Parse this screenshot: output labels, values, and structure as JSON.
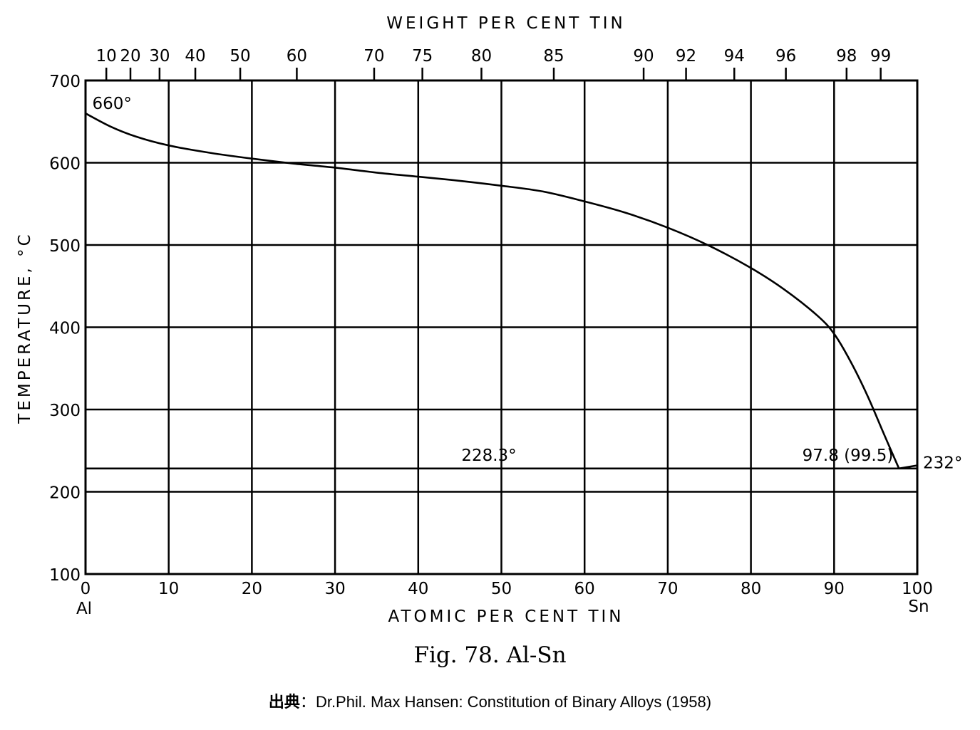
{
  "chart_data": {
    "type": "line",
    "top_axis_title": "WEIGHT PER CENT TIN",
    "bottom_axis_title": "ATOMIC PER CENT TIN",
    "ylabel": "TEMPERATURE, °C",
    "xlim": [
      0,
      100
    ],
    "ylim": [
      100,
      700
    ],
    "grid": true,
    "x_ticks": [
      0,
      10,
      20,
      30,
      40,
      50,
      60,
      70,
      80,
      90,
      100
    ],
    "x_tick_labels": [
      "0",
      "10",
      "20",
      "30",
      "40",
      "50",
      "60",
      "70",
      "80",
      "90",
      "100"
    ],
    "y_ticks": [
      100,
      200,
      300,
      400,
      500,
      600,
      700
    ],
    "y_tick_labels": [
      "100",
      "200",
      "300",
      "400",
      "500",
      "600",
      "700"
    ],
    "endpoint_labels": {
      "left": "Al",
      "right": "Sn"
    },
    "weight_ticks": [
      {
        "label": "10",
        "at_pct": 2.5
      },
      {
        "label": "20",
        "at_pct": 5.4
      },
      {
        "label": "30",
        "at_pct": 8.9
      },
      {
        "label": "40",
        "at_pct": 13.2
      },
      {
        "label": "50",
        "at_pct": 18.6
      },
      {
        "label": "60",
        "at_pct": 25.4
      },
      {
        "label": "70",
        "at_pct": 34.7
      },
      {
        "label": "75",
        "at_pct": 40.5
      },
      {
        "label": "80",
        "at_pct": 47.6
      },
      {
        "label": "85",
        "at_pct": 56.3
      },
      {
        "label": "90",
        "at_pct": 67.1
      },
      {
        "label": "92",
        "at_pct": 72.2
      },
      {
        "label": "94",
        "at_pct": 78.0
      },
      {
        "label": "96",
        "at_pct": 84.2
      },
      {
        "label": "98",
        "at_pct": 91.5
      },
      {
        "label": "99",
        "at_pct": 95.6
      }
    ],
    "series": [
      {
        "type": "line",
        "x": [
          0,
          3,
          6,
          10,
          15,
          20,
          25,
          30,
          35,
          40,
          45,
          50,
          55,
          60,
          65,
          70,
          75,
          80,
          84,
          88,
          90,
          92,
          94,
          96,
          97.8
        ],
        "y": [
          660,
          644,
          632,
          621,
          612,
          605,
          599,
          594,
          588,
          583,
          578,
          572,
          565,
          553,
          539,
          521,
          499,
          472,
          446,
          414,
          392,
          358,
          317,
          270,
          228.3
        ]
      },
      {
        "type": "line",
        "x": [
          97.8,
          100
        ],
        "y": [
          228.3,
          232
        ]
      },
      {
        "type": "line",
        "x": [
          0,
          100
        ],
        "y": [
          228.3,
          228.3
        ]
      }
    ],
    "annotations": [
      {
        "text": "660°",
        "x": 0.3,
        "y": 660
      },
      {
        "text": "228.3°",
        "x": 48.5,
        "y": 228.3
      },
      {
        "text": "97.8 (99.5)",
        "x": 97.8,
        "y": 228.3
      },
      {
        "text": "232°",
        "x": 100,
        "y": 232
      }
    ]
  },
  "caption": "Fig. 78. Al-Sn",
  "source": {
    "prefix": "出典",
    "separator": "：",
    "text": "Dr.Phil. Max Hansen: Constitution of Binary Alloys (1958)"
  }
}
